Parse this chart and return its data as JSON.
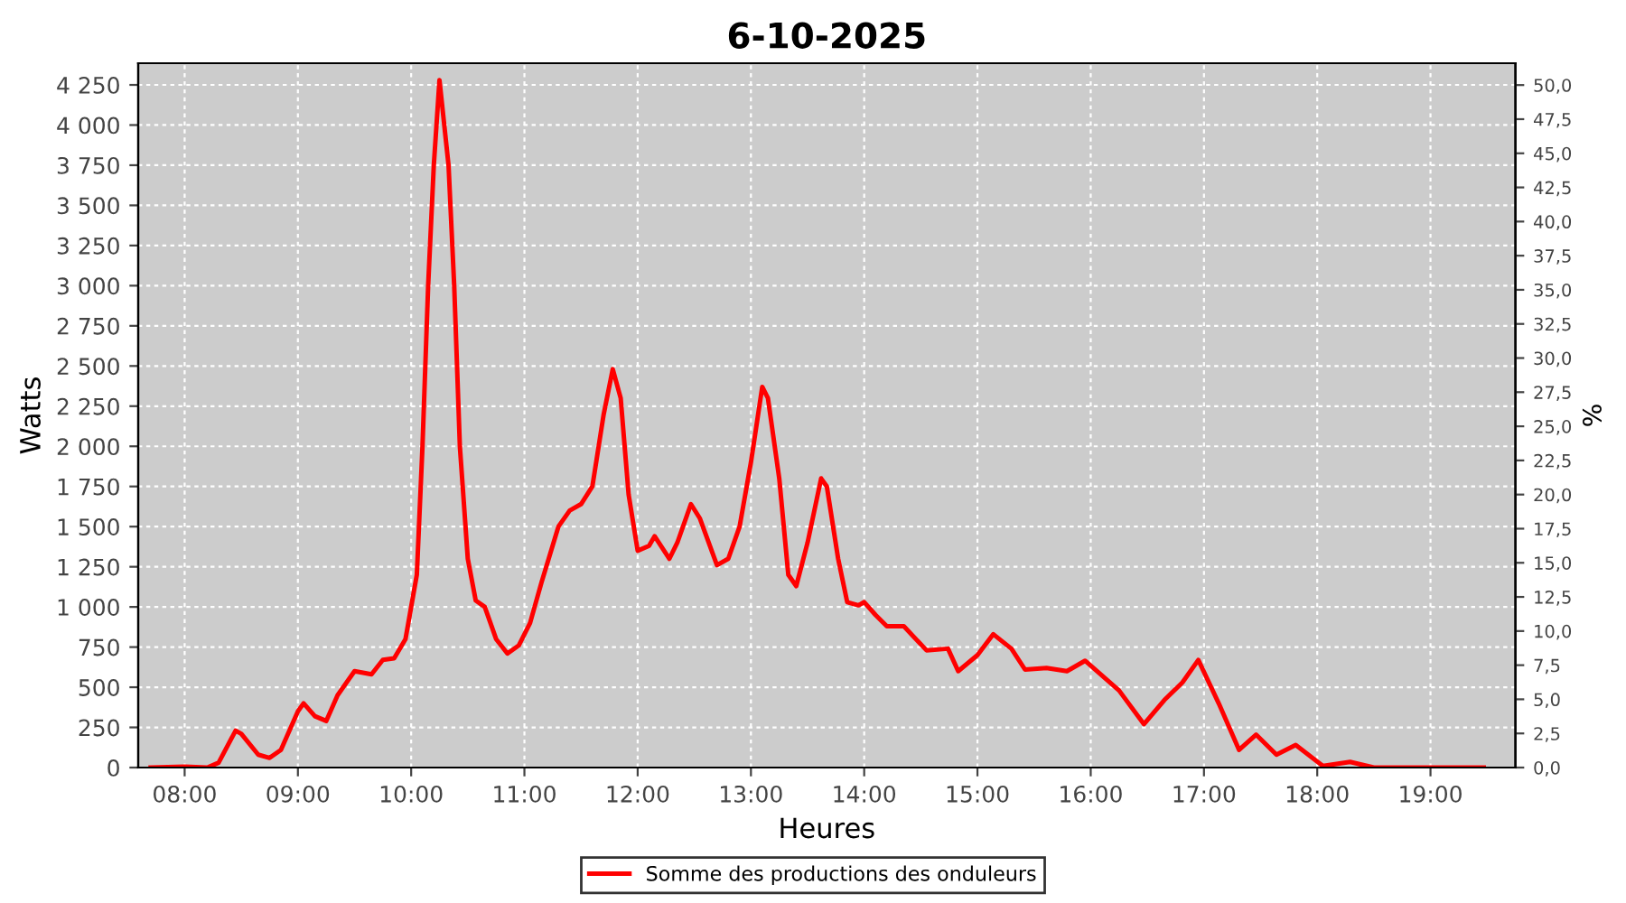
{
  "chart_data": {
    "type": "line",
    "title": "6-10-2025",
    "xlabel": "Heures",
    "ylabel": "Watts",
    "y2label": "%",
    "x": [
      7.7,
      8.0,
      8.2,
      8.3,
      8.45,
      8.5,
      8.65,
      8.75,
      8.85,
      9.0,
      9.05,
      9.15,
      9.25,
      9.35,
      9.5,
      9.65,
      9.75,
      9.85,
      9.95,
      10.05,
      10.1,
      10.15,
      10.2,
      10.25,
      10.33,
      10.38,
      10.43,
      10.5,
      10.57,
      10.65,
      10.75,
      10.85,
      10.95,
      11.05,
      11.15,
      11.3,
      11.4,
      11.5,
      11.6,
      11.7,
      11.78,
      11.85,
      11.92,
      12.0,
      12.1,
      12.15,
      12.28,
      12.35,
      12.47,
      12.55,
      12.7,
      12.8,
      12.9,
      13.0,
      13.1,
      13.15,
      13.25,
      13.33,
      13.4,
      13.5,
      13.62,
      13.67,
      13.77,
      13.85,
      13.95,
      14.0,
      14.1,
      14.2,
      14.35,
      14.55,
      14.74,
      14.83,
      15.0,
      15.14,
      15.3,
      15.42,
      15.61,
      15.79,
      15.95,
      16.25,
      16.47,
      16.65,
      16.81,
      16.95,
      17.13,
      17.31,
      17.46,
      17.64,
      17.81,
      18.05,
      18.29,
      18.5,
      19.47
    ],
    "series": [
      {
        "name": "Somme des productions des onduleurs",
        "color": "#ff0000",
        "values": [
          0,
          5,
          0,
          30,
          230,
          210,
          80,
          60,
          110,
          350,
          400,
          320,
          290,
          450,
          600,
          580,
          670,
          680,
          800,
          1200,
          2000,
          3000,
          3750,
          4280,
          3750,
          3000,
          2000,
          1300,
          1040,
          1000,
          800,
          710,
          760,
          900,
          1150,
          1500,
          1600,
          1640,
          1750,
          2200,
          2480,
          2300,
          1700,
          1350,
          1380,
          1440,
          1300,
          1400,
          1640,
          1550,
          1260,
          1300,
          1500,
          1900,
          2370,
          2300,
          1800,
          1200,
          1130,
          1400,
          1800,
          1750,
          1300,
          1030,
          1010,
          1030,
          950,
          880,
          880,
          730,
          740,
          600,
          700,
          830,
          740,
          610,
          620,
          600,
          665,
          480,
          270,
          420,
          530,
          670,
          400,
          110,
          205,
          80,
          140,
          10,
          35,
          0,
          0
        ]
      }
    ],
    "xlim": [
      7.59,
      19.75
    ],
    "ylim": [
      0,
      4385
    ],
    "y2lim": [
      0,
      51.6
    ],
    "xticks": [
      {
        "value": 8,
        "label": "08:00"
      },
      {
        "value": 9,
        "label": "09:00"
      },
      {
        "value": 10,
        "label": "10:00"
      },
      {
        "value": 11,
        "label": "11:00"
      },
      {
        "value": 12,
        "label": "12:00"
      },
      {
        "value": 13,
        "label": "13:00"
      },
      {
        "value": 14,
        "label": "14:00"
      },
      {
        "value": 15,
        "label": "15:00"
      },
      {
        "value": 16,
        "label": "16:00"
      },
      {
        "value": 17,
        "label": "17:00"
      },
      {
        "value": 18,
        "label": "18:00"
      },
      {
        "value": 19,
        "label": "19:00"
      }
    ],
    "yticks": [
      0,
      250,
      500,
      750,
      {
        "value": 1000,
        "label": "1 000"
      },
      {
        "value": 1250,
        "label": "1 250"
      },
      {
        "value": 1500,
        "label": "1 500"
      },
      {
        "value": 1750,
        "label": "1 750"
      },
      {
        "value": 2000,
        "label": "2 000"
      },
      {
        "value": 2250,
        "label": "2 250"
      },
      {
        "value": 2500,
        "label": "2 500"
      },
      {
        "value": 2750,
        "label": "2 750"
      },
      {
        "value": 3000,
        "label": "3 000"
      },
      {
        "value": 3250,
        "label": "3 250"
      },
      {
        "value": 3500,
        "label": "3 500"
      },
      {
        "value": 3750,
        "label": "3 750"
      },
      {
        "value": 4000,
        "label": "4 000"
      },
      {
        "value": 4250,
        "label": "4 250"
      }
    ],
    "y2ticks": [
      {
        "value": 0,
        "label": "0,0"
      },
      {
        "value": 2.5,
        "label": "2,5"
      },
      {
        "value": 5,
        "label": "5,0"
      },
      {
        "value": 7.5,
        "label": "7,5"
      },
      {
        "value": 10,
        "label": "10,0"
      },
      {
        "value": 12.5,
        "label": "12,5"
      },
      {
        "value": 15,
        "label": "15,0"
      },
      {
        "value": 17.5,
        "label": "17,5"
      },
      {
        "value": 20,
        "label": "20,0"
      },
      {
        "value": 22.5,
        "label": "22,5"
      },
      {
        "value": 25,
        "label": "25,0"
      },
      {
        "value": 27.5,
        "label": "27,5"
      },
      {
        "value": 30,
        "label": "30,0"
      },
      {
        "value": 32.5,
        "label": "32,5"
      },
      {
        "value": 35,
        "label": "35,0"
      },
      {
        "value": 37.5,
        "label": "37,5"
      },
      {
        "value": 40,
        "label": "40,0"
      },
      {
        "value": 42.5,
        "label": "42,5"
      },
      {
        "value": 45,
        "label": "45,0"
      },
      {
        "value": 47.5,
        "label": "47,5"
      },
      {
        "value": 50,
        "label": "50,0"
      }
    ],
    "grid": true,
    "legend": "bottom",
    "marker": "none",
    "line_style": "solid"
  }
}
